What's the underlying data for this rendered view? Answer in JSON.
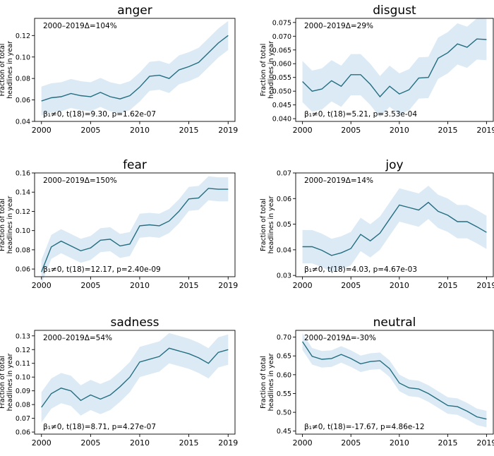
{
  "chart_data": [
    {
      "type": "line",
      "title": "anger",
      "ylabel": [
        "Fraction of total",
        "headlines in year"
      ],
      "annotation_top": "2000–2019Δ=104%",
      "annotation_bottom": "β₁≠0, t(18)=9.30, p=1.62e-07",
      "x": [
        2000,
        2001,
        2002,
        2003,
        2004,
        2005,
        2006,
        2007,
        2008,
        2009,
        2010,
        2011,
        2012,
        2013,
        2014,
        2015,
        2016,
        2017,
        2018,
        2019
      ],
      "y": [
        0.059,
        0.062,
        0.063,
        0.066,
        0.064,
        0.063,
        0.067,
        0.063,
        0.061,
        0.064,
        0.072,
        0.082,
        0.083,
        0.08,
        0.088,
        0.091,
        0.095,
        0.104,
        0.113,
        0.12
      ],
      "band": 0.0135,
      "xlim": [
        1999.3,
        2019.7
      ],
      "ylim": [
        0.04,
        0.136
      ],
      "xticks": [
        2000,
        2005,
        2010,
        2015,
        2019
      ],
      "yticks": [
        0.04,
        0.06,
        0.08,
        0.1,
        0.12
      ],
      "ytick_labels": [
        "0.04",
        "0.06",
        "0.08",
        "0.10",
        "0.12"
      ],
      "colors": {
        "line": "#236e80",
        "band": "#dceaf5"
      }
    },
    {
      "type": "line",
      "title": "disgust",
      "ylabel": [
        "Fraction of total",
        "headlines in year"
      ],
      "annotation_top": "2000–2019Δ=29%",
      "annotation_bottom": "β₁≠0, t(18)=5.21, p=3.53e-04",
      "x": [
        2000,
        2001,
        2002,
        2003,
        2004,
        2005,
        2006,
        2007,
        2008,
        2009,
        2010,
        2011,
        2012,
        2013,
        2014,
        2015,
        2016,
        2017,
        2018,
        2019
      ],
      "y": [
        0.0535,
        0.05,
        0.0508,
        0.0538,
        0.0518,
        0.056,
        0.056,
        0.0525,
        0.048,
        0.0518,
        0.049,
        0.0505,
        0.0548,
        0.055,
        0.062,
        0.064,
        0.0672,
        0.066,
        0.069,
        0.0688
      ],
      "band": 0.0075,
      "xlim": [
        1999.3,
        2019.7
      ],
      "ylim": [
        0.039,
        0.0765
      ],
      "xticks": [
        2000,
        2005,
        2010,
        2015,
        2019
      ],
      "yticks": [
        0.04,
        0.045,
        0.05,
        0.055,
        0.06,
        0.065,
        0.07,
        0.075
      ],
      "ytick_labels": [
        "0.040",
        "0.045",
        "0.050",
        "0.055",
        "0.060",
        "0.065",
        "0.070",
        "0.075"
      ],
      "colors": {
        "line": "#236e80",
        "band": "#dceaf5"
      }
    },
    {
      "type": "line",
      "title": "fear",
      "ylabel": [
        "Fraction of total",
        "headlines in year"
      ],
      "annotation_top": "2000–2019Δ=150%",
      "annotation_bottom": "β₁≠0, t(18)=12.17, p=2.40e-09",
      "x": [
        2000,
        2001,
        2002,
        2003,
        2004,
        2005,
        2006,
        2007,
        2008,
        2009,
        2010,
        2011,
        2012,
        2013,
        2014,
        2015,
        2016,
        2017,
        2018,
        2019
      ],
      "y": [
        0.057,
        0.083,
        0.089,
        0.084,
        0.079,
        0.082,
        0.09,
        0.091,
        0.084,
        0.086,
        0.105,
        0.106,
        0.105,
        0.11,
        0.12,
        0.133,
        0.134,
        0.144,
        0.143,
        0.143
      ],
      "band": 0.0125,
      "xlim": [
        1999.3,
        2019.7
      ],
      "ylim": [
        0.052,
        0.16
      ],
      "xticks": [
        2000,
        2005,
        2010,
        2015,
        2019
      ],
      "yticks": [
        0.06,
        0.08,
        0.1,
        0.12,
        0.14,
        0.16
      ],
      "ytick_labels": [
        "0.06",
        "0.08",
        "0.10",
        "0.12",
        "0.14",
        "0.16"
      ],
      "colors": {
        "line": "#236e80",
        "band": "#dceaf5"
      }
    },
    {
      "type": "line",
      "title": "joy",
      "ylabel": [
        "Fraction of total",
        "headlines in year"
      ],
      "annotation_top": "2000–2019Δ=14%",
      "annotation_bottom": "β₁≠0, t(18)=4.03, p=4.67e-03",
      "x": [
        2000,
        2001,
        2002,
        2003,
        2004,
        2005,
        2006,
        2007,
        2008,
        2009,
        2010,
        2011,
        2012,
        2013,
        2014,
        2015,
        2016,
        2017,
        2018,
        2019
      ],
      "y": [
        0.0412,
        0.0412,
        0.0398,
        0.0378,
        0.0388,
        0.0405,
        0.046,
        0.0435,
        0.0465,
        0.052,
        0.0575,
        0.0565,
        0.0555,
        0.0585,
        0.055,
        0.0535,
        0.051,
        0.051,
        0.049,
        0.0468
      ],
      "band": 0.0065,
      "xlim": [
        1999.3,
        2019.7
      ],
      "ylim": [
        0.0295,
        0.07
      ],
      "xticks": [
        2000,
        2005,
        2010,
        2015,
        2019
      ],
      "yticks": [
        0.03,
        0.04,
        0.05,
        0.06,
        0.07
      ],
      "ytick_labels": [
        "0.03",
        "0.04",
        "0.05",
        "0.06",
        "0.07"
      ],
      "colors": {
        "line": "#236e80",
        "band": "#dceaf5"
      }
    },
    {
      "type": "line",
      "title": "sadness",
      "ylabel": [
        "Fraction of total",
        "headlines in year"
      ],
      "annotation_top": "2000–2019Δ=54%",
      "annotation_bottom": "β₁≠0, t(18)=8.71, p=4.27e-07",
      "x": [
        2000,
        2001,
        2002,
        2003,
        2004,
        2005,
        2006,
        2007,
        2008,
        2009,
        2010,
        2011,
        2012,
        2013,
        2014,
        2015,
        2016,
        2017,
        2018,
        2019
      ],
      "y": [
        0.078,
        0.088,
        0.092,
        0.09,
        0.083,
        0.087,
        0.084,
        0.087,
        0.093,
        0.1,
        0.111,
        0.113,
        0.115,
        0.121,
        0.119,
        0.117,
        0.114,
        0.11,
        0.118,
        0.12
      ],
      "band": 0.011,
      "xlim": [
        1999.3,
        2019.7
      ],
      "ylim": [
        0.0585,
        0.134
      ],
      "xticks": [
        2000,
        2005,
        2010,
        2015,
        2019
      ],
      "yticks": [
        0.06,
        0.07,
        0.08,
        0.09,
        0.1,
        0.11,
        0.12,
        0.13
      ],
      "ytick_labels": [
        "0.06",
        "0.07",
        "0.08",
        "0.09",
        "0.10",
        "0.11",
        "0.12",
        "0.13"
      ],
      "colors": {
        "line": "#236e80",
        "band": "#dceaf5"
      }
    },
    {
      "type": "line",
      "title": "neutral",
      "ylabel": [
        "Fraction of total",
        "headlines in year"
      ],
      "annotation_top": "2000–2019Δ=-30%",
      "annotation_bottom": "β₁≠0, t(18)=-17.67, p=4.86e-12",
      "x": [
        2000,
        2001,
        2002,
        2003,
        2004,
        2005,
        2006,
        2007,
        2008,
        2009,
        2010,
        2011,
        2012,
        2013,
        2014,
        2015,
        2016,
        2017,
        2018,
        2019
      ],
      "y": [
        0.688,
        0.649,
        0.641,
        0.643,
        0.654,
        0.643,
        0.629,
        0.635,
        0.637,
        0.616,
        0.578,
        0.565,
        0.562,
        0.55,
        0.534,
        0.518,
        0.515,
        0.503,
        0.488,
        0.482
      ],
      "band": 0.022,
      "xlim": [
        1999.3,
        2019.7
      ],
      "ylim": [
        0.442,
        0.718
      ],
      "xticks": [
        2000,
        2005,
        2010,
        2015,
        2019
      ],
      "yticks": [
        0.45,
        0.5,
        0.55,
        0.6,
        0.65,
        0.7
      ],
      "ytick_labels": [
        "0.45",
        "0.50",
        "0.55",
        "0.60",
        "0.65",
        "0.70"
      ],
      "colors": {
        "line": "#236e80",
        "band": "#dceaf5"
      }
    }
  ]
}
